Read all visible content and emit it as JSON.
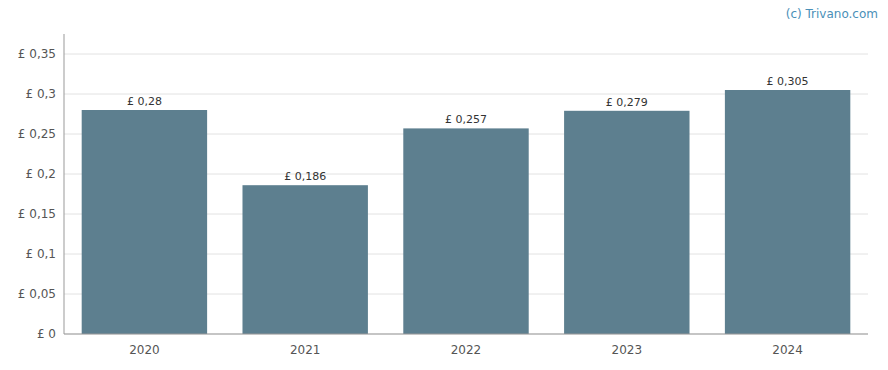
{
  "chart_data": {
    "type": "bar",
    "categories": [
      "2020",
      "2021",
      "2022",
      "2023",
      "2024"
    ],
    "values": [
      0.28,
      0.186,
      0.257,
      0.279,
      0.305
    ],
    "value_labels": [
      "£ 0,28",
      "£ 0,186",
      "£ 0,257",
      "£ 0,279",
      "£ 0,305"
    ],
    "data_labels": true,
    "color": "#5d7f8f",
    "ylim": [
      0,
      0.375
    ],
    "yticks": [
      {
        "value": 0,
        "label": "£ 0"
      },
      {
        "value": 0.05,
        "label": "£ 0,05"
      },
      {
        "value": 0.1,
        "label": "£ 0,1"
      },
      {
        "value": 0.15,
        "label": "£ 0,15"
      },
      {
        "value": 0.2,
        "label": "£ 0,2"
      },
      {
        "value": 0.25,
        "label": "£ 0,25"
      },
      {
        "value": 0.3,
        "label": "£ 0,3"
      },
      {
        "value": 0.35,
        "label": "£ 0,35"
      }
    ],
    "grid": true,
    "annotations": [
      "(c) Trivano.com"
    ]
  }
}
